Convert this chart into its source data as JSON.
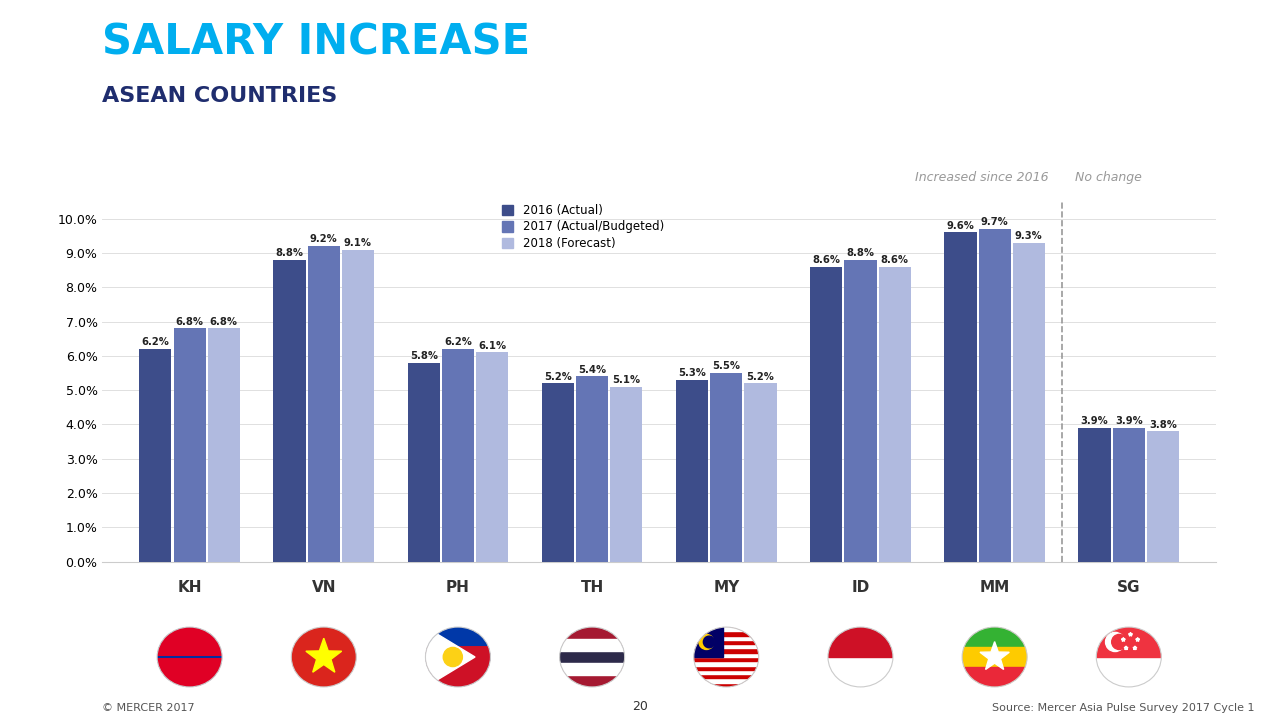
{
  "title": "SALARY INCREASE",
  "subtitle": "ASEAN COUNTRIES",
  "title_color": "#00AEEF",
  "subtitle_color": "#1F2D6E",
  "background_color": "#FFFFFF",
  "countries": [
    "KH",
    "VN",
    "PH",
    "TH",
    "MY",
    "ID",
    "MM",
    "SG"
  ],
  "values_2016": [
    6.2,
    8.8,
    5.8,
    5.2,
    5.3,
    8.6,
    9.6,
    3.9
  ],
  "values_2017": [
    6.8,
    9.2,
    6.2,
    5.4,
    5.5,
    8.8,
    9.7,
    3.9
  ],
  "values_2018": [
    6.8,
    9.1,
    6.1,
    5.1,
    5.2,
    8.6,
    9.3,
    3.8
  ],
  "color_2016": "#3D4D8A",
  "color_2017": "#6475B5",
  "color_2018": "#B0BADF",
  "legend_labels": [
    "2016 (Actual)",
    "2017 (Actual/Budgeted)",
    "2018 (Forecast)"
  ],
  "ylim": [
    0,
    10.5
  ],
  "yticks": [
    0.0,
    1.0,
    2.0,
    3.0,
    4.0,
    5.0,
    6.0,
    7.0,
    8.0,
    9.0,
    10.0
  ],
  "increased_label": "Increased since 2016",
  "no_change_label": "No change",
  "source_text": "Source: Mercer Asia Pulse Survey 2017 Cycle 1",
  "copyright_text": "© MERCER 2017",
  "page_number": "20"
}
